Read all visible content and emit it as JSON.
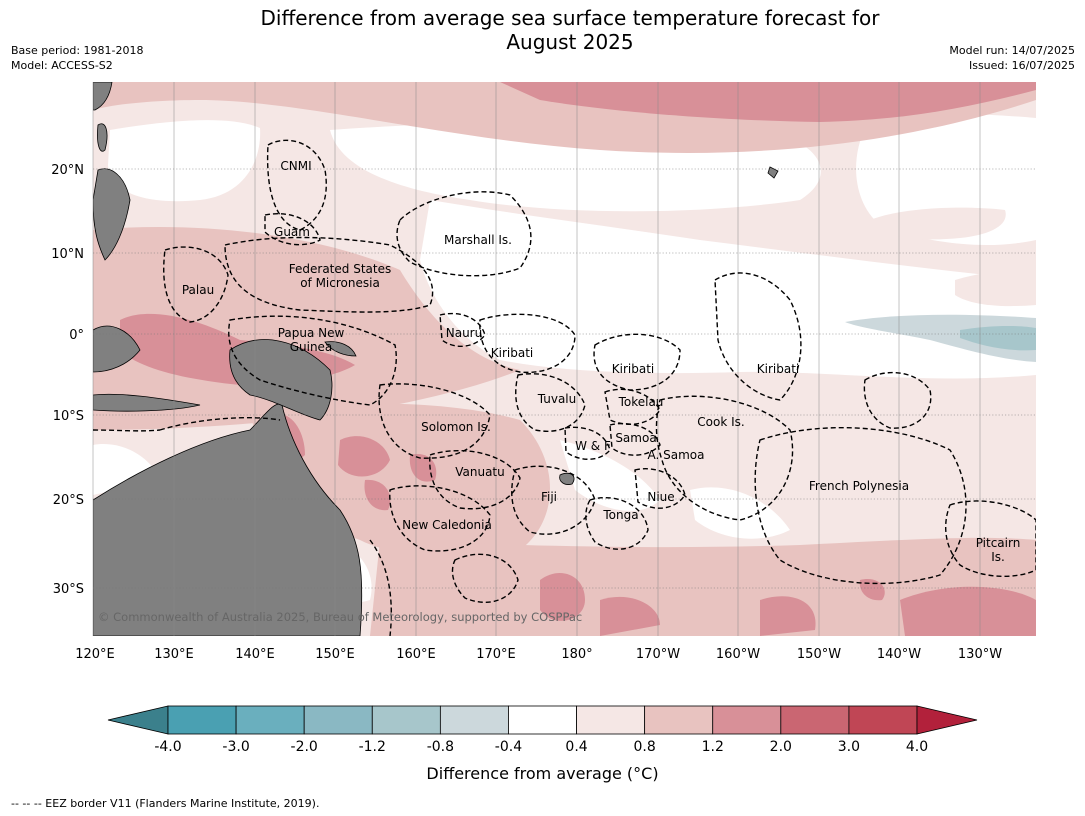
{
  "title_line1": "Difference from average sea surface temperature forecast for",
  "title_line2": "August 2025",
  "meta_left": {
    "base_period": "Base period: 1981-2018",
    "model": "Model: ACCESS-S2"
  },
  "meta_right": {
    "model_run": "Model run: 14/07/2025",
    "issued": "Issued: 16/07/2025"
  },
  "copyright": "© Commonwealth of Australia 2025, Bureau of Meteorology, supported by COSPPac",
  "lat_labels": [
    "20°N",
    "10°N",
    "0°",
    "10°S",
    "20°S",
    "30°S"
  ],
  "lon_labels": [
    "120°E",
    "130°E",
    "140°E",
    "150°E",
    "160°E",
    "170°E",
    "180°",
    "170°W",
    "160°W",
    "150°W",
    "140°W",
    "130°W"
  ],
  "places": [
    [
      "CNMI"
    ],
    [
      "Guam"
    ],
    [
      "Marshall Is."
    ],
    [
      "Federated States",
      "of Micronesia"
    ],
    [
      "Palau"
    ],
    [
      "Papua New",
      "Guinea"
    ],
    [
      "Nauru"
    ],
    [
      "Kiribati"
    ],
    [
      "Kiribati"
    ],
    [
      "Kiribati"
    ],
    [
      "Tuvalu"
    ],
    [
      "Tokelau"
    ],
    [
      "Cook Is."
    ],
    [
      "Solomon Is."
    ],
    [
      "W & F"
    ],
    [
      "Samoa"
    ],
    [
      "A. Samoa"
    ],
    [
      "Vanuatu"
    ],
    [
      "Fiji"
    ],
    [
      "Niue"
    ],
    [
      "Tonga"
    ],
    [
      "French Polynesia"
    ],
    [
      "New Caledonia"
    ],
    [
      "Pitcairn",
      "Is."
    ]
  ],
  "colorbar": {
    "ticks": [
      "-4.0",
      "-3.0",
      "-2.0",
      "-1.2",
      "-0.8",
      "-0.4",
      "0.4",
      "0.8",
      "1.2",
      "2.0",
      "3.0",
      "4.0"
    ],
    "colors": [
      "#4aa0b2",
      "#6aafbe",
      "#8ab8c3",
      "#a7c6cb",
      "#ccd8dc",
      "#ffffff",
      "#f5e7e5",
      "#e8c3c0",
      "#d89098",
      "#ca6672",
      "#c04655"
    ],
    "under_color": "#3b808c",
    "over_color": "#b2213b",
    "label": "Difference from average (°C)"
  },
  "footnote": "--  --  -- EEZ border V11 (Flanders Marine Institute, 2019).",
  "colors": {
    "land": "#808080",
    "eez": "#000000"
  }
}
